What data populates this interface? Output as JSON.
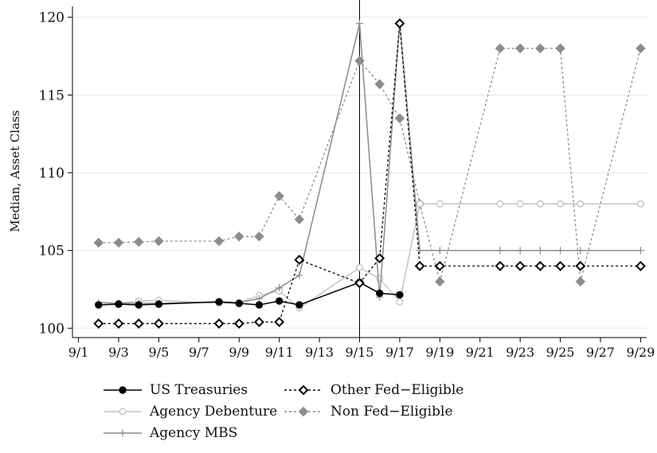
{
  "chart_data": {
    "type": "line",
    "title": "",
    "xlabel": "",
    "ylabel": "Median, Asset Class",
    "x_ticks": [
      1,
      3,
      5,
      7,
      9,
      11,
      13,
      15,
      17,
      19,
      21,
      23,
      25,
      27,
      29
    ],
    "x_tick_labels": [
      "9/1",
      "9/3",
      "9/5",
      "9/7",
      "9/9",
      "9/11",
      "9/13",
      "9/15",
      "9/17",
      "9/19",
      "9/21",
      "9/23",
      "9/25",
      "9/27",
      "9/29"
    ],
    "y_ticks": [
      100,
      105,
      110,
      115,
      120
    ],
    "y_tick_labels": [
      "100",
      "105",
      "110",
      "115",
      "120"
    ],
    "xlim": [
      0.7,
      29.3
    ],
    "ylim": [
      99.4,
      120.7
    ],
    "grid": "horizontal",
    "vline_x": 15,
    "legend_position": "bottom",
    "series": [
      {
        "name": "US Treasuries",
        "color": "#000000",
        "dash": "solid",
        "marker": "circle-filled",
        "points": [
          [
            2,
            101.5
          ],
          [
            3,
            101.55
          ],
          [
            4,
            101.5
          ],
          [
            5,
            101.55
          ],
          [
            8,
            101.7
          ],
          [
            9,
            101.6
          ],
          [
            10,
            101.5
          ],
          [
            11,
            101.75
          ],
          [
            12,
            101.5
          ],
          [
            15,
            102.95
          ],
          [
            16,
            102.25
          ],
          [
            17,
            102.15
          ]
        ]
      },
      {
        "name": "Agency MBS",
        "color": "#8a8a8a",
        "dash": "solid",
        "marker": "plus",
        "points": [
          [
            2,
            101.65
          ],
          [
            3,
            101.6
          ],
          [
            4,
            101.6
          ],
          [
            5,
            101.6
          ],
          [
            8,
            101.7
          ],
          [
            9,
            101.65
          ],
          [
            10,
            101.9
          ],
          [
            11,
            102.6
          ],
          [
            12,
            103.4
          ],
          [
            15,
            119.6
          ],
          [
            16,
            102.0
          ],
          [
            17,
            119.7
          ],
          [
            18,
            105.0
          ],
          [
            19,
            105.0
          ],
          [
            22,
            105.0
          ],
          [
            23,
            105.0
          ],
          [
            24,
            105.0
          ],
          [
            25,
            105.0
          ],
          [
            26,
            105.0
          ],
          [
            29,
            105.0
          ]
        ]
      },
      {
        "name": "Non Fed−Eligible",
        "color": "#8c8c8c",
        "dash": "dotted",
        "marker": "diamond-filled",
        "points": [
          [
            2,
            105.5
          ],
          [
            3,
            105.5
          ],
          [
            4,
            105.55
          ],
          [
            5,
            105.6
          ],
          [
            8,
            105.6
          ],
          [
            9,
            105.9
          ],
          [
            10,
            105.9
          ],
          [
            11,
            108.5
          ],
          [
            12,
            107.0
          ],
          [
            15,
            117.2
          ],
          [
            16,
            115.7
          ],
          [
            17,
            113.5
          ],
          [
            18,
            108.0
          ],
          [
            19,
            103.0
          ],
          [
            22,
            118.0
          ],
          [
            23,
            118.0
          ],
          [
            24,
            118.0
          ],
          [
            25,
            118.0
          ],
          [
            26,
            103.0
          ],
          [
            29,
            118.0
          ]
        ]
      },
      {
        "name": "Agency Debenture",
        "color": "#c4c4c4",
        "dash": "solid",
        "marker": "circle-open",
        "points": [
          [
            2,
            101.5
          ],
          [
            3,
            101.6
          ],
          [
            4,
            101.75
          ],
          [
            5,
            101.8
          ],
          [
            8,
            101.6
          ],
          [
            9,
            101.65
          ],
          [
            10,
            102.1
          ],
          [
            11,
            102.4
          ],
          [
            12,
            101.3
          ],
          [
            15,
            103.9
          ],
          [
            16,
            103.2
          ],
          [
            17,
            101.7
          ],
          [
            18,
            108.0
          ],
          [
            19,
            108.0
          ],
          [
            22,
            108.0
          ],
          [
            23,
            108.0
          ],
          [
            24,
            108.0
          ],
          [
            25,
            108.0
          ],
          [
            26,
            108.0
          ],
          [
            29,
            108.0
          ]
        ]
      },
      {
        "name": "Other Fed−Eligible",
        "color": "#000000",
        "dash": "dotted",
        "marker": "diamond-open",
        "points": [
          [
            2,
            100.3
          ],
          [
            3,
            100.3
          ],
          [
            4,
            100.3
          ],
          [
            5,
            100.3
          ],
          [
            8,
            100.3
          ],
          [
            9,
            100.3
          ],
          [
            10,
            100.4
          ],
          [
            11,
            100.4
          ],
          [
            12,
            104.4
          ],
          [
            15,
            102.9
          ],
          [
            16,
            104.5
          ],
          [
            17,
            119.6
          ],
          [
            18,
            104.0
          ],
          [
            19,
            104.0
          ],
          [
            22,
            104.0
          ],
          [
            23,
            104.0
          ],
          [
            24,
            104.0
          ],
          [
            25,
            104.0
          ],
          [
            26,
            104.0
          ],
          [
            29,
            104.0
          ]
        ]
      }
    ],
    "legend_order": [
      0,
      3,
      1,
      4,
      2
    ]
  }
}
